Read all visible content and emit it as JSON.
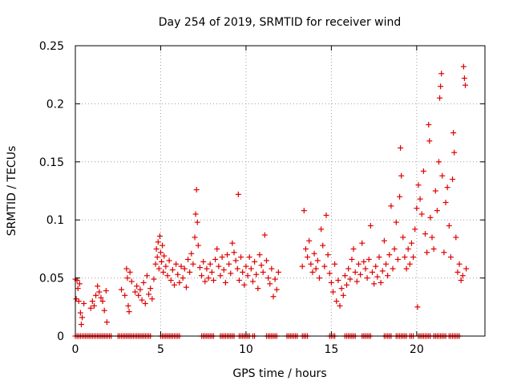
{
  "chart_data": {
    "type": "scatter",
    "title": "Day 254 of 2019, SRMTID for receiver wind",
    "xlabel": "GPS time / hours",
    "ylabel": "SRMTID / TECUs",
    "xlim": [
      0,
      24
    ],
    "ylim": [
      0,
      0.25
    ],
    "x_ticks": [
      {
        "value": 0,
        "label": "0"
      },
      {
        "value": 5,
        "label": "5"
      },
      {
        "value": 10,
        "label": "10"
      },
      {
        "value": 15,
        "label": "15"
      },
      {
        "value": 20,
        "label": "20"
      }
    ],
    "y_ticks": [
      {
        "value": 0,
        "label": "0"
      },
      {
        "value": 0.05,
        "label": "0.05"
      },
      {
        "value": 0.1,
        "label": "0.1"
      },
      {
        "value": 0.15,
        "label": "0.15"
      },
      {
        "value": 0.2,
        "label": "0.2"
      },
      {
        "value": 0.25,
        "label": "0.25"
      }
    ],
    "grid": true,
    "marker": "+",
    "color": "#e00000",
    "series": [
      {
        "name": "SRMTID",
        "points": [
          [
            0.0,
            0.049
          ],
          [
            0.05,
            0.032
          ],
          [
            0.1,
            0.048
          ],
          [
            0.15,
            0.041
          ],
          [
            0.2,
            0.03
          ],
          [
            0.25,
            0.045
          ],
          [
            0.3,
            0.02
          ],
          [
            0.35,
            0.01
          ],
          [
            0.4,
            0.016
          ],
          [
            0.5,
            0.028
          ],
          [
            0.9,
            0.024
          ],
          [
            1.0,
            0.03
          ],
          [
            1.1,
            0.026
          ],
          [
            1.2,
            0.035
          ],
          [
            1.3,
            0.043
          ],
          [
            1.4,
            0.038
          ],
          [
            1.5,
            0.033
          ],
          [
            1.6,
            0.03
          ],
          [
            1.7,
            0.022
          ],
          [
            1.8,
            0.039
          ],
          [
            1.85,
            0.012
          ],
          [
            2.7,
            0.04
          ],
          [
            2.9,
            0.035
          ],
          [
            3.0,
            0.058
          ],
          [
            3.05,
            0.05
          ],
          [
            3.1,
            0.026
          ],
          [
            3.15,
            0.021
          ],
          [
            3.2,
            0.055
          ],
          [
            3.3,
            0.047
          ],
          [
            3.5,
            0.038
          ],
          [
            3.6,
            0.043
          ],
          [
            3.7,
            0.035
          ],
          [
            3.8,
            0.04
          ],
          [
            3.9,
            0.031
          ],
          [
            4.0,
            0.046
          ],
          [
            4.1,
            0.028
          ],
          [
            4.2,
            0.052
          ],
          [
            4.3,
            0.036
          ],
          [
            4.4,
            0.041
          ],
          [
            4.5,
            0.032
          ],
          [
            4.6,
            0.049
          ],
          [
            4.7,
            0.062
          ],
          [
            4.75,
            0.075
          ],
          [
            4.8,
            0.068
          ],
          [
            4.85,
            0.081
          ],
          [
            4.9,
            0.058
          ],
          [
            4.95,
            0.086
          ],
          [
            5.0,
            0.072
          ],
          [
            5.05,
            0.064
          ],
          [
            5.1,
            0.078
          ],
          [
            5.15,
            0.055
          ],
          [
            5.2,
            0.069
          ],
          [
            5.3,
            0.06
          ],
          [
            5.4,
            0.052
          ],
          [
            5.5,
            0.065
          ],
          [
            5.6,
            0.048
          ],
          [
            5.7,
            0.057
          ],
          [
            5.8,
            0.044
          ],
          [
            5.9,
            0.062
          ],
          [
            6.0,
            0.053
          ],
          [
            6.1,
            0.046
          ],
          [
            6.2,
            0.06
          ],
          [
            6.3,
            0.05
          ],
          [
            6.4,
            0.058
          ],
          [
            6.5,
            0.042
          ],
          [
            6.6,
            0.066
          ],
          [
            6.7,
            0.055
          ],
          [
            6.8,
            0.071
          ],
          [
            6.9,
            0.062
          ],
          [
            7.0,
            0.085
          ],
          [
            7.05,
            0.105
          ],
          [
            7.1,
            0.126
          ],
          [
            7.15,
            0.098
          ],
          [
            7.2,
            0.078
          ],
          [
            7.3,
            0.059
          ],
          [
            7.4,
            0.052
          ],
          [
            7.5,
            0.064
          ],
          [
            7.6,
            0.047
          ],
          [
            7.7,
            0.058
          ],
          [
            7.8,
            0.05
          ],
          [
            7.9,
            0.062
          ],
          [
            8.0,
            0.055
          ],
          [
            8.1,
            0.048
          ],
          [
            8.2,
            0.066
          ],
          [
            8.3,
            0.075
          ],
          [
            8.4,
            0.06
          ],
          [
            8.5,
            0.052
          ],
          [
            8.6,
            0.068
          ],
          [
            8.7,
            0.057
          ],
          [
            8.8,
            0.046
          ],
          [
            8.9,
            0.07
          ],
          [
            9.0,
            0.062
          ],
          [
            9.1,
            0.054
          ],
          [
            9.2,
            0.08
          ],
          [
            9.3,
            0.072
          ],
          [
            9.4,
            0.065
          ],
          [
            9.5,
            0.058
          ],
          [
            9.55,
            0.122
          ],
          [
            9.6,
            0.048
          ],
          [
            9.7,
            0.068
          ],
          [
            9.8,
            0.055
          ],
          [
            9.9,
            0.044
          ],
          [
            10.0,
            0.06
          ],
          [
            10.1,
            0.052
          ],
          [
            10.2,
            0.068
          ],
          [
            10.3,
            0.058
          ],
          [
            10.4,
            0.047
          ],
          [
            10.5,
            0.064
          ],
          [
            10.6,
            0.053
          ],
          [
            10.7,
            0.041
          ],
          [
            10.8,
            0.07
          ],
          [
            10.9,
            0.061
          ],
          [
            11.0,
            0.055
          ],
          [
            11.1,
            0.087
          ],
          [
            11.2,
            0.065
          ],
          [
            11.3,
            0.05
          ],
          [
            11.4,
            0.045
          ],
          [
            11.5,
            0.058
          ],
          [
            11.6,
            0.034
          ],
          [
            11.7,
            0.049
          ],
          [
            11.8,
            0.04
          ],
          [
            11.9,
            0.055
          ],
          [
            13.3,
            0.06
          ],
          [
            13.4,
            0.108
          ],
          [
            13.5,
            0.075
          ],
          [
            13.6,
            0.068
          ],
          [
            13.7,
            0.082
          ],
          [
            13.8,
            0.062
          ],
          [
            13.9,
            0.055
          ],
          [
            14.0,
            0.071
          ],
          [
            14.1,
            0.058
          ],
          [
            14.2,
            0.065
          ],
          [
            14.3,
            0.05
          ],
          [
            14.4,
            0.092
          ],
          [
            14.5,
            0.078
          ],
          [
            14.6,
            0.06
          ],
          [
            14.7,
            0.104
          ],
          [
            14.8,
            0.07
          ],
          [
            14.9,
            0.054
          ],
          [
            15.0,
            0.046
          ],
          [
            15.1,
            0.038
          ],
          [
            15.2,
            0.062
          ],
          [
            15.3,
            0.03
          ],
          [
            15.4,
            0.048
          ],
          [
            15.5,
            0.026
          ],
          [
            15.6,
            0.041
          ],
          [
            15.7,
            0.035
          ],
          [
            15.8,
            0.052
          ],
          [
            15.9,
            0.044
          ],
          [
            16.0,
            0.058
          ],
          [
            16.1,
            0.049
          ],
          [
            16.2,
            0.066
          ],
          [
            16.3,
            0.075
          ],
          [
            16.4,
            0.055
          ],
          [
            16.5,
            0.047
          ],
          [
            16.6,
            0.062
          ],
          [
            16.7,
            0.053
          ],
          [
            16.8,
            0.08
          ],
          [
            16.9,
            0.064
          ],
          [
            17.0,
            0.058
          ],
          [
            17.1,
            0.05
          ],
          [
            17.2,
            0.066
          ],
          [
            17.3,
            0.095
          ],
          [
            17.4,
            0.055
          ],
          [
            17.5,
            0.045
          ],
          [
            17.6,
            0.06
          ],
          [
            17.7,
            0.051
          ],
          [
            17.8,
            0.068
          ],
          [
            17.9,
            0.046
          ],
          [
            18.0,
            0.056
          ],
          [
            18.1,
            0.082
          ],
          [
            18.2,
            0.062
          ],
          [
            18.3,
            0.052
          ],
          [
            18.4,
            0.07
          ],
          [
            18.5,
            0.112
          ],
          [
            18.6,
            0.058
          ],
          [
            18.7,
            0.075
          ],
          [
            18.8,
            0.098
          ],
          [
            18.9,
            0.066
          ],
          [
            19.0,
            0.12
          ],
          [
            19.05,
            0.162
          ],
          [
            19.1,
            0.138
          ],
          [
            19.2,
            0.085
          ],
          [
            19.3,
            0.068
          ],
          [
            19.4,
            0.058
          ],
          [
            19.5,
            0.075
          ],
          [
            19.6,
            0.062
          ],
          [
            19.7,
            0.08
          ],
          [
            19.8,
            0.068
          ],
          [
            19.9,
            0.092
          ],
          [
            20.0,
            0.11
          ],
          [
            20.05,
            0.025
          ],
          [
            20.1,
            0.13
          ],
          [
            20.2,
            0.118
          ],
          [
            20.3,
            0.105
          ],
          [
            20.4,
            0.142
          ],
          [
            20.5,
            0.088
          ],
          [
            20.6,
            0.072
          ],
          [
            20.7,
            0.182
          ],
          [
            20.75,
            0.168
          ],
          [
            20.8,
            0.102
          ],
          [
            20.9,
            0.085
          ],
          [
            21.0,
            0.075
          ],
          [
            21.1,
            0.125
          ],
          [
            21.2,
            0.108
          ],
          [
            21.3,
            0.15
          ],
          [
            21.35,
            0.205
          ],
          [
            21.4,
            0.215
          ],
          [
            21.45,
            0.226
          ],
          [
            21.5,
            0.138
          ],
          [
            21.6,
            0.072
          ],
          [
            21.7,
            0.115
          ],
          [
            21.8,
            0.128
          ],
          [
            21.9,
            0.095
          ],
          [
            22.0,
            0.068
          ],
          [
            22.1,
            0.135
          ],
          [
            22.15,
            0.175
          ],
          [
            22.2,
            0.158
          ],
          [
            22.3,
            0.085
          ],
          [
            22.4,
            0.055
          ],
          [
            22.5,
            0.062
          ],
          [
            22.6,
            0.048
          ],
          [
            22.7,
            0.052
          ],
          [
            22.75,
            0.232
          ],
          [
            22.8,
            0.222
          ],
          [
            22.85,
            0.216
          ],
          [
            22.9,
            0.058
          ]
        ]
      }
    ],
    "zero_intervals": [
      [
        0.0,
        2.15
      ],
      [
        2.5,
        4.4
      ],
      [
        5.0,
        6.1
      ],
      [
        7.4,
        8.1
      ],
      [
        8.5,
        9.3
      ],
      [
        9.6,
        10.2
      ],
      [
        10.4,
        10.5
      ],
      [
        11.2,
        11.8
      ],
      [
        12.4,
        13.0
      ],
      [
        13.3,
        13.6
      ],
      [
        14.9,
        15.2
      ],
      [
        15.8,
        16.4
      ],
      [
        16.8,
        17.3
      ],
      [
        18.1,
        18.5
      ],
      [
        18.8,
        19.4
      ],
      [
        19.6,
        19.8
      ],
      [
        20.1,
        20.8
      ],
      [
        21.0,
        21.7
      ],
      [
        21.9,
        22.5
      ]
    ]
  }
}
